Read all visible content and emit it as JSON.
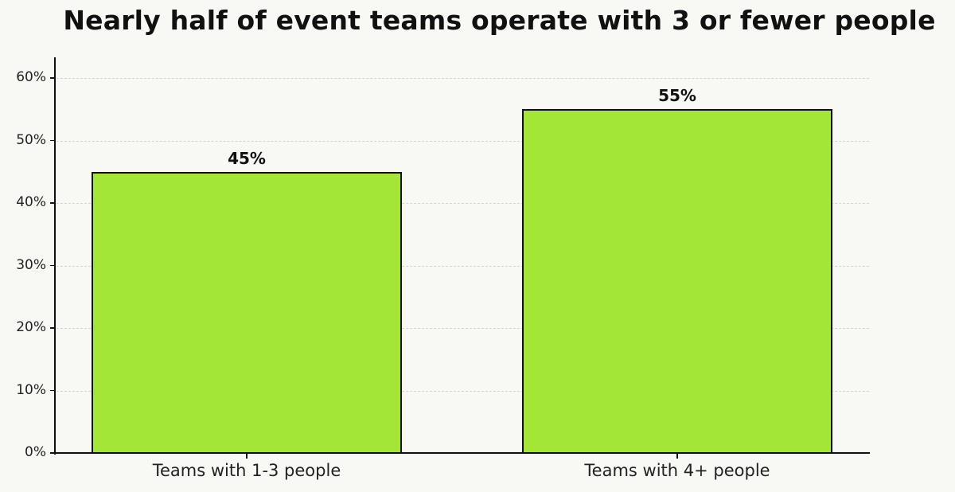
{
  "chart_data": {
    "type": "bar",
    "title": "Nearly half of event teams operate with 3 or fewer people",
    "categories": [
      "Teams with 1-3 people",
      "Teams with 4+ people"
    ],
    "values": [
      45,
      55
    ],
    "value_labels": [
      "45%",
      "55%"
    ],
    "xlabel": "",
    "ylabel": "",
    "ylim": [
      0,
      63
    ],
    "yticks": [
      0,
      10,
      20,
      30,
      40,
      50,
      60
    ],
    "ytick_labels": [
      "0%",
      "10%",
      "20%",
      "30%",
      "40%",
      "50%",
      "60%"
    ],
    "grid": "horizontal dashed",
    "legend": null,
    "colors": {
      "bar": "#a3e635",
      "edge": "#111111",
      "background": "#f8f8f4"
    }
  }
}
